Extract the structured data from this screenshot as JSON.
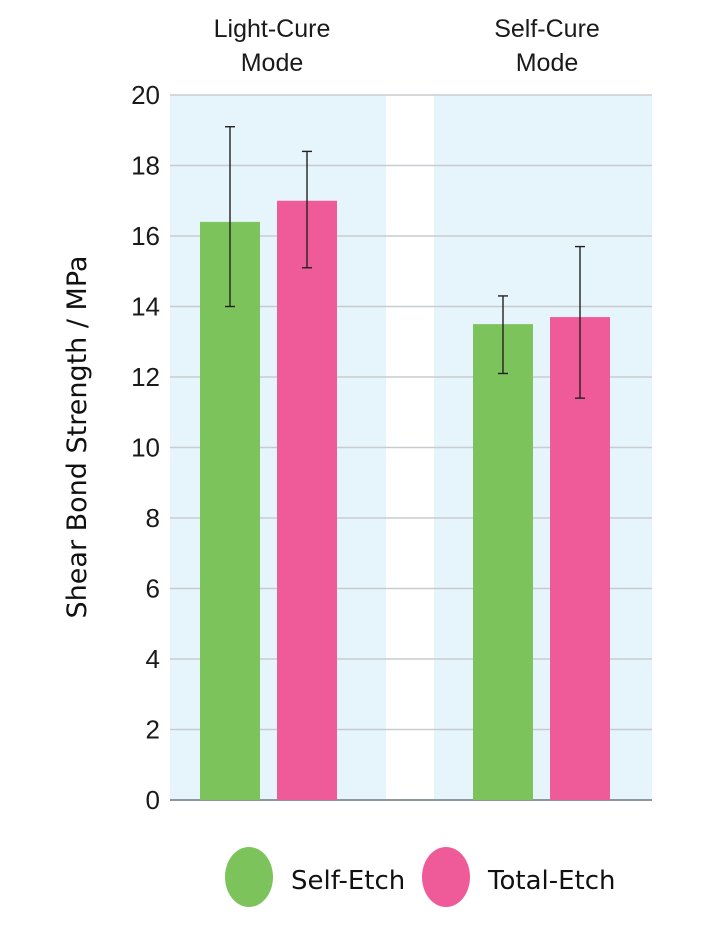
{
  "chart_data": {
    "type": "bar",
    "categories": [
      [
        "Light-Cure",
        "Mode"
      ],
      [
        "Self-Cure",
        "Mode"
      ]
    ],
    "ylabel": "Shear  Bond Strength / MPa",
    "xlabel": "",
    "title": "",
    "ylim": [
      0,
      20
    ],
    "yticks": [
      0,
      2,
      4,
      6,
      8,
      10,
      12,
      14,
      16,
      18,
      20
    ],
    "grid": true,
    "legend_position": "bottom",
    "series": [
      {
        "name": "Self-Etch",
        "color": "#7cc35b",
        "values": [
          16.4,
          13.5
        ],
        "error_low": [
          14.0,
          12.1
        ],
        "error_high": [
          19.1,
          14.3
        ]
      },
      {
        "name": "Total-Etch",
        "color": "#ef5b98",
        "values": [
          17.0,
          13.7
        ],
        "error_low": [
          15.1,
          11.4
        ],
        "error_high": [
          18.4,
          15.7
        ]
      }
    ],
    "panel_color": "#e6f5fb",
    "grid_color": "#c8ccd0"
  }
}
